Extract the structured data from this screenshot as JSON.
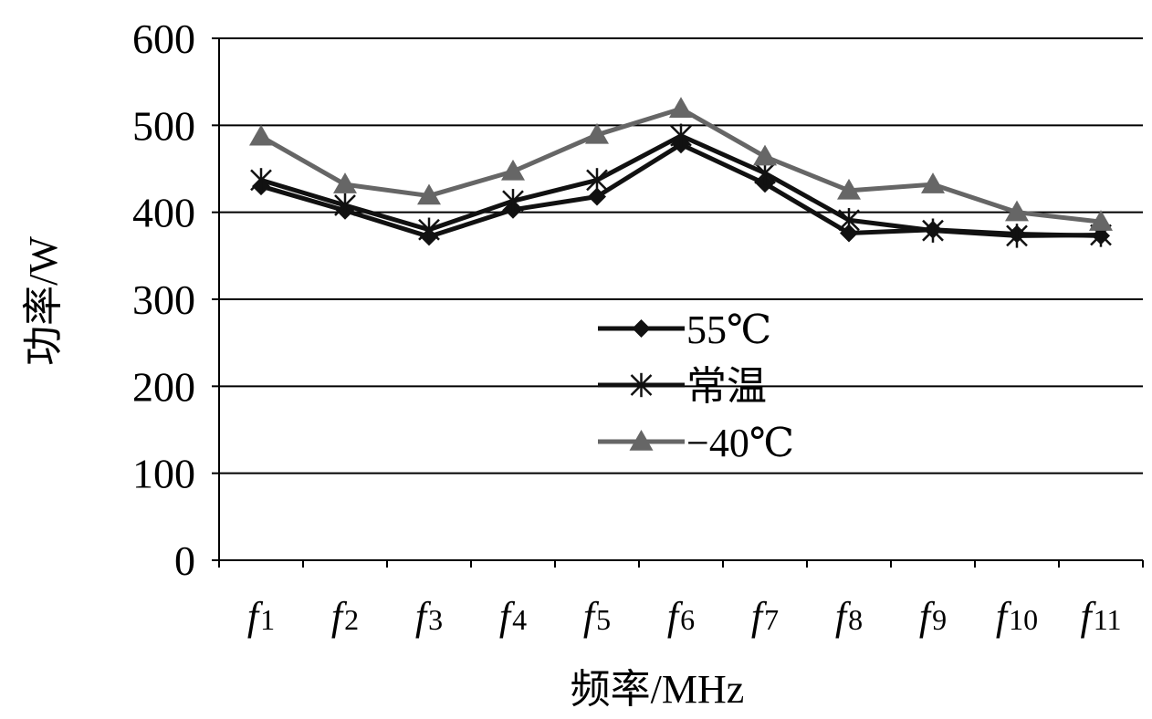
{
  "chart_data": {
    "type": "line",
    "title": "",
    "xlabel": "频率/MHz",
    "ylabel": "功率/W",
    "ylim": [
      0,
      600
    ],
    "yticks": [
      0,
      100,
      200,
      300,
      400,
      500,
      600
    ],
    "grid": true,
    "legend_position": "center",
    "categories": [
      {
        "base": "f",
        "sub": "1"
      },
      {
        "base": "f",
        "sub": "2"
      },
      {
        "base": "f",
        "sub": "3"
      },
      {
        "base": "f",
        "sub": "4"
      },
      {
        "base": "f",
        "sub": "5"
      },
      {
        "base": "f",
        "sub": "6"
      },
      {
        "base": "f",
        "sub": "7"
      },
      {
        "base": "f",
        "sub": "8"
      },
      {
        "base": "f",
        "sub": "9"
      },
      {
        "base": "f",
        "sub": "10"
      },
      {
        "base": "f",
        "sub": "11"
      }
    ],
    "series": [
      {
        "name": "55℃",
        "marker": "diamond",
        "color": "#111111",
        "values": [
          430,
          402,
          372,
          403,
          418,
          478,
          433,
          376,
          380,
          375,
          373
        ]
      },
      {
        "name": "常温",
        "marker": "asterisk",
        "color": "#111111",
        "values": [
          437,
          408,
          380,
          413,
          437,
          488,
          445,
          391,
          379,
          373,
          374
        ]
      },
      {
        "name": "−40℃",
        "marker": "triangle",
        "color": "#666666",
        "values": [
          487,
          432,
          419,
          447,
          489,
          519,
          464,
          425,
          432,
          400,
          389
        ]
      }
    ]
  }
}
